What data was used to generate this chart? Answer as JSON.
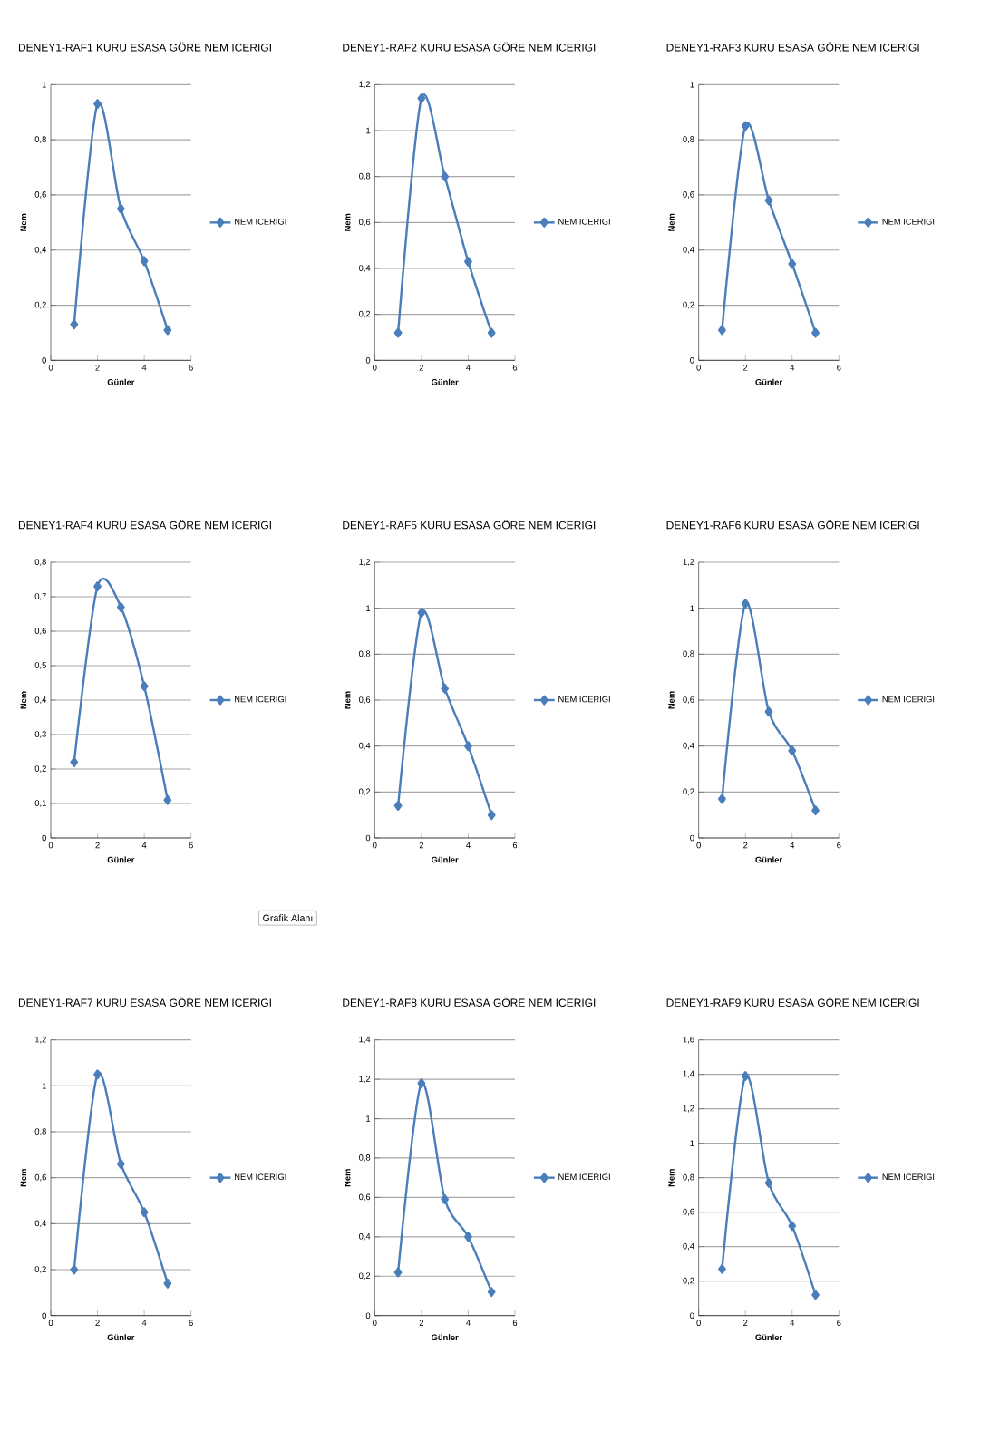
{
  "chart_data": [
    {
      "type": "line",
      "title": "DENEY1-RAF1 KURU ESASA GÖRE NEM ICERIGI",
      "xlabel": "Günler",
      "ylabel": "Nem",
      "x": [
        1,
        2,
        3,
        4,
        5
      ],
      "series": [
        {
          "name": "NEM ICERIGI",
          "color": "#4a7ebb",
          "values": [
            0.13,
            0.93,
            0.55,
            0.36,
            0.11
          ]
        }
      ],
      "xlim": [
        0,
        6
      ],
      "xticks": [
        0,
        2,
        4,
        6
      ],
      "ylim": [
        0,
        1
      ],
      "yticks": [
        0,
        {
          "value": 0.2,
          "label": "0,2"
        },
        {
          "value": 0.4,
          "label": "0,4"
        },
        {
          "value": 0.6,
          "label": "0,6"
        },
        {
          "value": 0.8,
          "label": "0,8"
        },
        1
      ],
      "grid": "y",
      "legend": "right",
      "marker": "diamond",
      "line_style": "solid"
    },
    {
      "type": "line",
      "title": "DENEY1-RAF2 KURU ESASA GÖRE NEM ICERIGI",
      "xlabel": "Günler",
      "ylabel": "Nem",
      "x": [
        1,
        2,
        3,
        4,
        5
      ],
      "series": [
        {
          "name": "NEM ICERIGI",
          "color": "#4a7ebb",
          "values": [
            0.12,
            1.14,
            0.8,
            0.43,
            0.12
          ]
        }
      ],
      "xlim": [
        0,
        6
      ],
      "xticks": [
        0,
        2,
        4,
        6
      ],
      "ylim": [
        0,
        1.2
      ],
      "yticks": [
        0,
        {
          "value": 0.2,
          "label": "0,2"
        },
        {
          "value": 0.4,
          "label": "0,4"
        },
        {
          "value": 0.6,
          "label": "0,6"
        },
        {
          "value": 0.8,
          "label": "0,8"
        },
        1,
        {
          "value": 1.2,
          "label": "1,2"
        }
      ],
      "grid": "y",
      "legend": "right",
      "marker": "diamond",
      "line_style": "solid"
    },
    {
      "type": "line",
      "title": "DENEY1-RAF3 KURU ESASA GÖRE NEM ICERIGI",
      "xlabel": "Günler",
      "ylabel": "Nem",
      "x": [
        1,
        2,
        3,
        4,
        5
      ],
      "series": [
        {
          "name": "NEM ICERIGI",
          "color": "#4a7ebb",
          "values": [
            0.11,
            0.85,
            0.58,
            0.35,
            0.1
          ]
        }
      ],
      "xlim": [
        0,
        6
      ],
      "xticks": [
        0,
        2,
        4,
        6
      ],
      "ylim": [
        0,
        1
      ],
      "yticks": [
        0,
        {
          "value": 0.2,
          "label": "0,2"
        },
        {
          "value": 0.4,
          "label": "0,4"
        },
        {
          "value": 0.6,
          "label": "0,6"
        },
        {
          "value": 0.8,
          "label": "0,8"
        },
        1
      ],
      "grid": "y",
      "legend": "right",
      "marker": "diamond",
      "line_style": "solid"
    },
    {
      "type": "line",
      "title": "DENEY1-RAF4 KURU ESASA GÖRE NEM ICERIGI",
      "xlabel": "Günler",
      "ylabel": "Nem",
      "x": [
        1,
        2,
        3,
        4,
        5
      ],
      "series": [
        {
          "name": "NEM ICERIGI",
          "color": "#4a7ebb",
          "values": [
            0.22,
            0.73,
            0.67,
            0.44,
            0.11
          ]
        }
      ],
      "xlim": [
        0,
        6
      ],
      "xticks": [
        0,
        2,
        4,
        6
      ],
      "ylim": [
        0,
        0.8
      ],
      "yticks": [
        0,
        {
          "value": 0.1,
          "label": "0,1"
        },
        {
          "value": 0.2,
          "label": "0,2"
        },
        {
          "value": 0.3,
          "label": "0,3"
        },
        {
          "value": 0.4,
          "label": "0,4"
        },
        {
          "value": 0.5,
          "label": "0,5"
        },
        {
          "value": 0.6,
          "label": "0,6"
        },
        {
          "value": 0.7,
          "label": "0,7"
        },
        {
          "value": 0.8,
          "label": "0,8"
        }
      ],
      "grid": "y",
      "legend": "right",
      "marker": "diamond",
      "line_style": "solid",
      "annotations": [
        "Grafik Alanı"
      ]
    },
    {
      "type": "line",
      "title": "DENEY1-RAF5 KURU ESASA GÖRE NEM ICERIGI",
      "xlabel": "Günler",
      "ylabel": "Nem",
      "x": [
        1,
        2,
        3,
        4,
        5
      ],
      "series": [
        {
          "name": "NEM ICERIGI",
          "color": "#4a7ebb",
          "values": [
            0.14,
            0.98,
            0.65,
            0.4,
            0.1
          ]
        }
      ],
      "xlim": [
        0,
        6
      ],
      "xticks": [
        0,
        2,
        4,
        6
      ],
      "ylim": [
        0,
        1.2
      ],
      "yticks": [
        0,
        {
          "value": 0.2,
          "label": "0,2"
        },
        {
          "value": 0.4,
          "label": "0,4"
        },
        {
          "value": 0.6,
          "label": "0,6"
        },
        {
          "value": 0.8,
          "label": "0,8"
        },
        1,
        {
          "value": 1.2,
          "label": "1,2"
        }
      ],
      "grid": "y",
      "legend": "right",
      "marker": "diamond",
      "line_style": "solid"
    },
    {
      "type": "line",
      "title": "DENEY1-RAF6 KURU ESASA GÖRE NEM ICERIGI",
      "xlabel": "Günler",
      "ylabel": "Nem",
      "x": [
        1,
        2,
        3,
        4,
        5
      ],
      "series": [
        {
          "name": "NEM ICERIGI",
          "color": "#4a7ebb",
          "values": [
            0.17,
            1.02,
            0.55,
            0.38,
            0.12
          ]
        }
      ],
      "xlim": [
        0,
        6
      ],
      "xticks": [
        0,
        2,
        4,
        6
      ],
      "ylim": [
        0,
        1.2
      ],
      "yticks": [
        0,
        {
          "value": 0.2,
          "label": "0,2"
        },
        {
          "value": 0.4,
          "label": "0,4"
        },
        {
          "value": 0.6,
          "label": "0,6"
        },
        {
          "value": 0.8,
          "label": "0,8"
        },
        1,
        {
          "value": 1.2,
          "label": "1,2"
        }
      ],
      "grid": "y",
      "legend": "right",
      "marker": "diamond",
      "line_style": "solid"
    },
    {
      "type": "line",
      "title": "DENEY1-RAF7 KURU ESASA GÖRE NEM ICERIGI",
      "xlabel": "Günler",
      "ylabel": "Nem",
      "x": [
        1,
        2,
        3,
        4,
        5
      ],
      "series": [
        {
          "name": "NEM ICERIGI",
          "color": "#4a7ebb",
          "values": [
            0.2,
            1.05,
            0.66,
            0.45,
            0.14
          ]
        }
      ],
      "xlim": [
        0,
        6
      ],
      "xticks": [
        0,
        2,
        4,
        6
      ],
      "ylim": [
        0,
        1.2
      ],
      "yticks": [
        0,
        {
          "value": 0.2,
          "label": "0,2"
        },
        {
          "value": 0.4,
          "label": "0,4"
        },
        {
          "value": 0.6,
          "label": "0,6"
        },
        {
          "value": 0.8,
          "label": "0,8"
        },
        1,
        {
          "value": 1.2,
          "label": "1,2"
        }
      ],
      "grid": "y",
      "legend": "right",
      "marker": "diamond",
      "line_style": "solid"
    },
    {
      "type": "line",
      "title": "DENEY1-RAF8 KURU ESASA GÖRE NEM ICERIGI",
      "xlabel": "Günler",
      "ylabel": "Nem",
      "x": [
        1,
        2,
        3,
        4,
        5
      ],
      "series": [
        {
          "name": "NEM ICERIGI",
          "color": "#4a7ebb",
          "values": [
            0.22,
            1.18,
            0.59,
            0.4,
            0.12
          ]
        }
      ],
      "xlim": [
        0,
        6
      ],
      "xticks": [
        0,
        2,
        4,
        6
      ],
      "ylim": [
        0,
        1.4
      ],
      "yticks": [
        0,
        {
          "value": 0.2,
          "label": "0,2"
        },
        {
          "value": 0.4,
          "label": "0,4"
        },
        {
          "value": 0.6,
          "label": "0,6"
        },
        {
          "value": 0.8,
          "label": "0,8"
        },
        1,
        {
          "value": 1.2,
          "label": "1,2"
        },
        {
          "value": 1.4,
          "label": "1,4"
        }
      ],
      "grid": "y",
      "legend": "right",
      "marker": "diamond",
      "line_style": "solid"
    },
    {
      "type": "line",
      "title": "DENEY1-RAF9 KURU ESASA GÖRE NEM ICERIGI",
      "xlabel": "Günler",
      "ylabel": "Nem",
      "x": [
        1,
        2,
        3,
        4,
        5
      ],
      "series": [
        {
          "name": "NEM ICERIGI",
          "color": "#4a7ebb",
          "values": [
            0.27,
            1.39,
            0.77,
            0.52,
            0.12
          ]
        }
      ],
      "xlim": [
        0,
        6
      ],
      "xticks": [
        0,
        2,
        4,
        6
      ],
      "ylim": [
        0,
        1.6
      ],
      "yticks": [
        0,
        {
          "value": 0.2,
          "label": "0,2"
        },
        {
          "value": 0.4,
          "label": "0,4"
        },
        {
          "value": 0.6,
          "label": "0,6"
        },
        {
          "value": 0.8,
          "label": "0,8"
        },
        1,
        {
          "value": 1.2,
          "label": "1,2"
        },
        {
          "value": 1.4,
          "label": "1,4"
        },
        {
          "value": 1.6,
          "label": "1,6"
        }
      ],
      "grid": "y",
      "legend": "right",
      "marker": "diamond",
      "line_style": "solid"
    }
  ]
}
